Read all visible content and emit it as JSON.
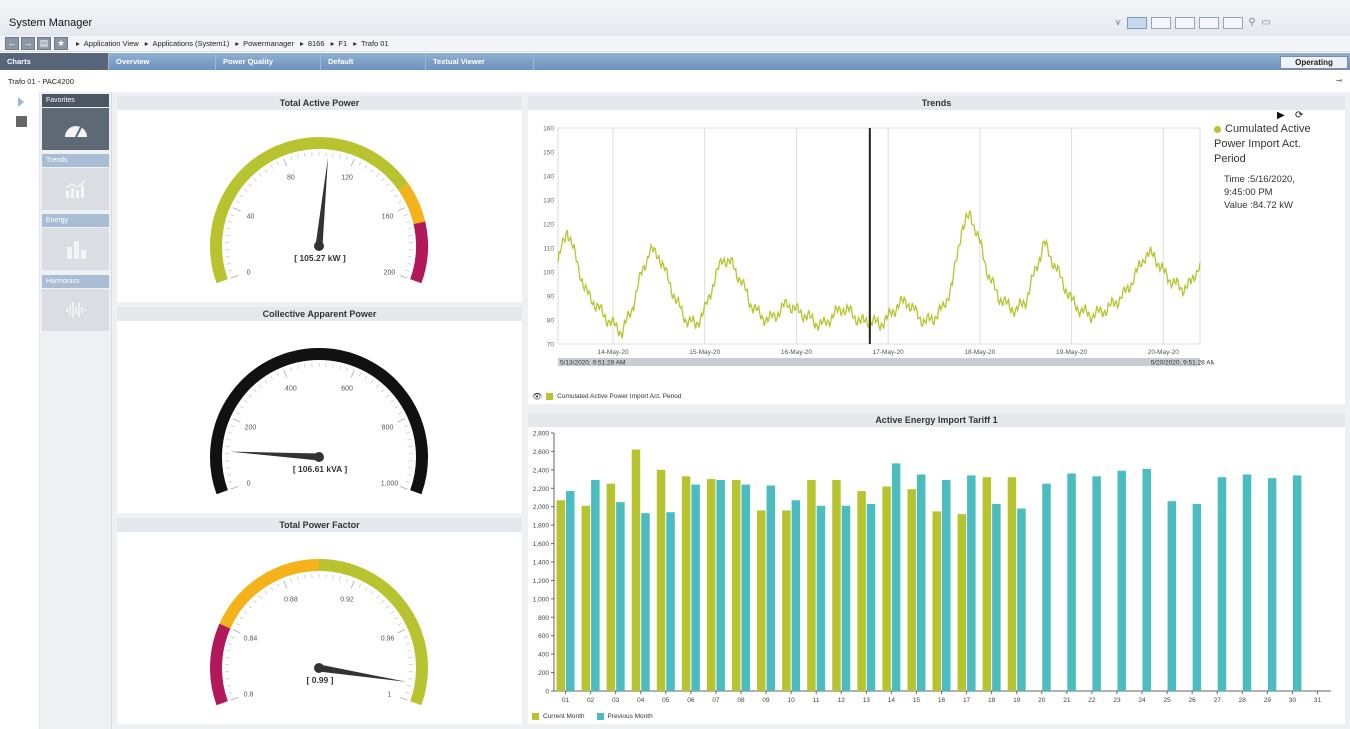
{
  "app": {
    "title": "System Manager"
  },
  "nav": {
    "breadcrumb": [
      "Application View",
      "Applications (System1)",
      "Powermanager",
      "8166",
      "F1",
      "Trafo 01"
    ]
  },
  "tabs": [
    "Charts",
    "Overview",
    "Power Quality",
    "Default",
    "Textual Viewer"
  ],
  "operating_button": "Operating",
  "object_title": "Trafo 01 - PAC4200",
  "categories": [
    {
      "label": "Favorites",
      "icon": "gauge-icon"
    },
    {
      "label": "Trends",
      "icon": "trend-chart-icon"
    },
    {
      "label": "Energy",
      "icon": "bar-chart-icon"
    },
    {
      "label": "Harmonics",
      "icon": "waveform-icon"
    }
  ],
  "gauges": [
    {
      "title": "Total Active Power",
      "value_label": "[ 105.27 kW ]",
      "value": 105.27,
      "min": 0,
      "max": 200,
      "ticks": [
        "0",
        "40",
        "80",
        "120",
        "160",
        "200"
      ],
      "colors": {
        "normal": "#b8c42f",
        "warn": "#f5b31b",
        "alarm": "#b3185a"
      }
    },
    {
      "title": "Collective Apparent Power",
      "value_label": "[ 106.61 kVA ]",
      "value": 106.61,
      "min": 0,
      "max": 1000,
      "ticks": [
        "0",
        "200",
        "400",
        "600",
        "800",
        "1,000"
      ],
      "colors": {
        "normal": "#111111"
      }
    },
    {
      "title": "Total Power Factor",
      "value_label": "[ 0.99 ]",
      "value": 0.99,
      "min": 0.8,
      "max": 1.0,
      "ticks": [
        "0.8",
        "0.84",
        "0.88",
        "0.92",
        "0.96",
        "1"
      ],
      "colors": {
        "normal": "#b8c42f",
        "warn": "#f5b31b",
        "alarm": "#b3185a"
      }
    }
  ],
  "trends": {
    "title": "Trends",
    "series_name": "Cumulated Active Power Import Act. Period",
    "start_label": "5/13/2020, 9:51:28 AM",
    "end_label": "5/20/2020, 9:51:28 AM",
    "cursor": {
      "name_line1": "Cumulated Active",
      "name_line2": "Power Import Act.",
      "name_line3": "Period",
      "time_line1": "Time :5/16/2020,",
      "time_line2": "9:45:00 PM",
      "value_line": "Value :84.72 kW"
    },
    "color": "#b8c42f"
  },
  "chart_data": [
    {
      "type": "line",
      "title": "Trends",
      "ylim": [
        70,
        160
      ],
      "yticks": [
        "70",
        "80",
        "90",
        "100",
        "110",
        "120",
        "130",
        "140",
        "150",
        "160"
      ],
      "x_tick_labels": [
        "14-May-20",
        "15-May-20",
        "16-May-20",
        "17-May-20",
        "18-May-20",
        "19-May-20",
        "20-May-20"
      ],
      "x_range_days": [
        0,
        7
      ],
      "series": [
        {
          "name": "Cumulated Active Power Import Act. Period",
          "x": [
            0,
            0.1,
            0.2,
            0.3,
            0.4,
            0.5,
            0.6,
            0.7,
            0.8,
            0.9,
            1.0,
            1.1,
            1.2,
            1.3,
            1.4,
            1.5,
            1.6,
            1.7,
            1.8,
            1.9,
            2.0,
            2.1,
            2.2,
            2.3,
            2.4,
            2.5,
            2.6,
            2.7,
            2.8,
            2.9,
            3.0,
            3.1,
            3.2,
            3.3,
            3.4,
            3.5,
            3.6,
            3.7,
            3.8,
            3.9,
            4.0,
            4.1,
            4.2,
            4.3,
            4.4,
            4.5,
            4.6,
            4.7,
            4.8,
            4.9,
            5.0,
            5.1,
            5.2,
            5.3,
            5.4,
            5.5,
            5.6,
            5.7,
            5.8,
            5.9,
            6.0,
            6.1,
            6.2,
            6.3,
            6.4,
            6.5,
            6.6,
            6.7,
            6.8,
            6.9,
            7.0
          ],
          "values": [
            104,
            118,
            105,
            92,
            87,
            82,
            78,
            75,
            84,
            98,
            109,
            107,
            97,
            87,
            80,
            78,
            84,
            96,
            106,
            103,
            96,
            87,
            82,
            80,
            83,
            87,
            84,
            82,
            79,
            78,
            82,
            85,
            83,
            79,
            80,
            78,
            81,
            86,
            88,
            83,
            79,
            81,
            85,
            95,
            118,
            124,
            112,
            98,
            90,
            86,
            84,
            88,
            100,
            112,
            104,
            96,
            88,
            84,
            82,
            83,
            85,
            88,
            92,
            99,
            107,
            107,
            100,
            96,
            93,
            95,
            104
          ]
        }
      ]
    },
    {
      "type": "bar",
      "title": "Active Energy Import Tariff 1",
      "ylim": [
        0,
        2800
      ],
      "yticks": [
        "0",
        "200",
        "400",
        "600",
        "800",
        "1,000",
        "1,200",
        "1,400",
        "1,600",
        "1,800",
        "2,000",
        "2,200",
        "2,400",
        "2,600",
        "2,800"
      ],
      "categories": [
        "01",
        "02",
        "03",
        "04",
        "05",
        "06",
        "07",
        "08",
        "09",
        "10",
        "11",
        "12",
        "13",
        "14",
        "15",
        "16",
        "17",
        "18",
        "19",
        "20",
        "21",
        "22",
        "23",
        "24",
        "25",
        "26",
        "27",
        "28",
        "29",
        "30",
        "31"
      ],
      "series": [
        {
          "name": "Current Month",
          "color": "#b8c42f",
          "values": [
            2070,
            2010,
            2250,
            2620,
            2400,
            2330,
            2300,
            2290,
            1960,
            1960,
            2290,
            2290,
            2170,
            2220,
            2190,
            1950,
            1920,
            2320,
            2320,
            null,
            null,
            null,
            null,
            null,
            null,
            null,
            null,
            null,
            null,
            null,
            null
          ]
        },
        {
          "name": "Previous Month",
          "color": "#4bbcc0",
          "values": [
            2170,
            2290,
            2050,
            1930,
            1940,
            2240,
            2290,
            2240,
            2230,
            2070,
            2010,
            2010,
            2030,
            2470,
            2350,
            2290,
            2340,
            2030,
            1980,
            2250,
            2360,
            2330,
            2390,
            2410,
            2060,
            2030,
            2320,
            2350,
            2310,
            2340,
            null
          ]
        }
      ]
    }
  ],
  "energy": {
    "title": "Active Energy Import Tariff 1",
    "legend": [
      "Current Month",
      "Previous Month"
    ]
  }
}
